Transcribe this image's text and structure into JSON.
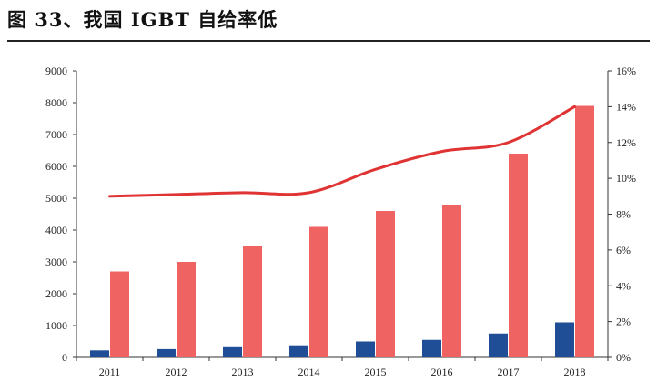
{
  "header": {
    "title": "图 33、我国 IGBT 自给率低"
  },
  "chart_data": {
    "type": "bar",
    "categories": [
      "2011",
      "2012",
      "2013",
      "2014",
      "2015",
      "2016",
      "2017",
      "2018"
    ],
    "series": [
      {
        "type": "bar",
        "axis": "left",
        "color": "#1f4e97",
        "values": [
          220,
          260,
          320,
          380,
          500,
          550,
          750,
          1100
        ]
      },
      {
        "type": "bar",
        "axis": "left",
        "color": "#ef6363",
        "values": [
          2700,
          3000,
          3500,
          4100,
          4600,
          4800,
          6400,
          7900
        ]
      },
      {
        "type": "line",
        "axis": "right",
        "color": "#e03333",
        "values": [
          0.09,
          0.091,
          0.092,
          0.092,
          0.105,
          0.115,
          0.12,
          0.14
        ]
      }
    ],
    "ylim": [
      0,
      9000
    ],
    "yticks": [
      "0",
      "1000",
      "2000",
      "3000",
      "4000",
      "5000",
      "6000",
      "7000",
      "8000",
      "9000"
    ],
    "y2lim": [
      0,
      0.16
    ],
    "y2ticks": [
      "0%",
      "2%",
      "4%",
      "6%",
      "8%",
      "10%",
      "12%",
      "14%",
      "16%"
    ],
    "grid": false,
    "legend": "none"
  }
}
